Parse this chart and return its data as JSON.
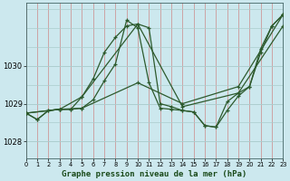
{
  "title": "Graphe pression niveau de la mer (hPa)",
  "background_color": "#cce8ee",
  "grid_color_v": "#cc8888",
  "grid_color_h": "#aacccc",
  "line_color": "#2d5a2d",
  "xlim": [
    0,
    23
  ],
  "ylim": [
    1027.55,
    1031.65
  ],
  "yticks": [
    1028,
    1029,
    1030
  ],
  "xticks": [
    0,
    1,
    2,
    3,
    4,
    5,
    6,
    7,
    8,
    9,
    10,
    11,
    12,
    13,
    14,
    15,
    16,
    17,
    18,
    19,
    20,
    21,
    22,
    23
  ],
  "series": [
    {
      "x": [
        0,
        1,
        2,
        3,
        4,
        5,
        6,
        7,
        8,
        9,
        10,
        11,
        12,
        13,
        14,
        15,
        16,
        17,
        18,
        19,
        20,
        21,
        22,
        23
      ],
      "y": [
        1028.75,
        1028.58,
        1028.82,
        1028.85,
        1028.85,
        1028.88,
        1029.1,
        1029.6,
        1030.05,
        1031.2,
        1031.0,
        1029.55,
        1028.88,
        1028.85,
        1028.82,
        1028.78,
        1028.42,
        1028.38,
        1028.82,
        1029.2,
        1029.45,
        1030.35,
        1031.05,
        1031.35
      ]
    },
    {
      "x": [
        0,
        1,
        2,
        3,
        4,
        5,
        6,
        7,
        8,
        9,
        10,
        11,
        12,
        13,
        14,
        15,
        16,
        17,
        18,
        19,
        20,
        21,
        22,
        23
      ],
      "y": [
        1028.75,
        1028.58,
        1028.82,
        1028.85,
        1028.85,
        1029.18,
        1029.65,
        1030.35,
        1030.75,
        1031.05,
        1031.1,
        1031.0,
        1029.0,
        1028.92,
        1028.82,
        1028.78,
        1028.42,
        1028.38,
        1029.05,
        1029.28,
        1029.45,
        1030.45,
        1031.05,
        1031.35
      ]
    },
    {
      "x": [
        0,
        3,
        5,
        10,
        14,
        19,
        23
      ],
      "y": [
        1028.75,
        1028.85,
        1028.88,
        1029.55,
        1029.0,
        1029.45,
        1031.35
      ]
    },
    {
      "x": [
        0,
        3,
        5,
        10,
        14,
        19,
        23
      ],
      "y": [
        1028.75,
        1028.85,
        1029.18,
        1031.1,
        1028.92,
        1029.28,
        1031.05
      ]
    }
  ],
  "marker": "+",
  "markersize": 3.5,
  "linewidth": 0.9
}
